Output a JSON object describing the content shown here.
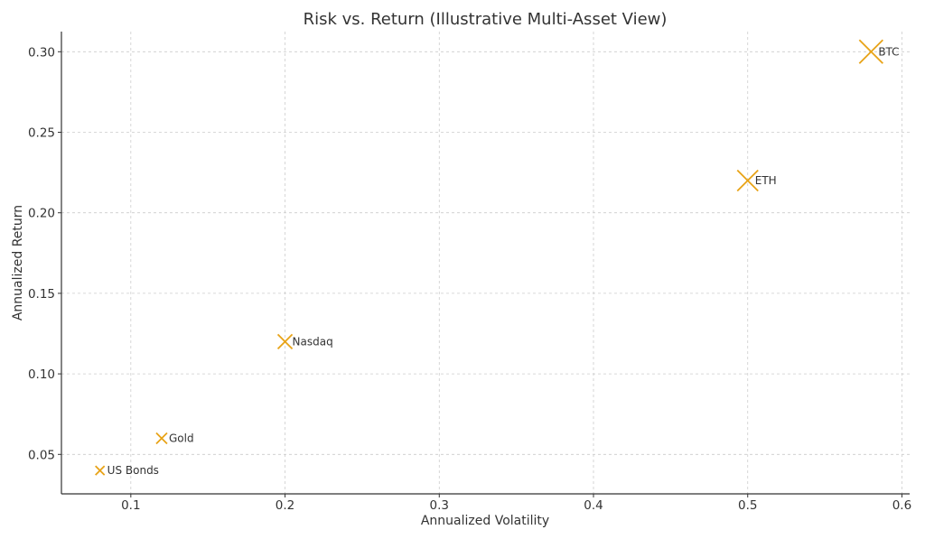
{
  "chart_data": {
    "type": "scatter",
    "title": "Risk vs. Return (Illustrative Multi-Asset View)",
    "xlabel": "Annualized Volatility",
    "ylabel": "Annualized Return",
    "xlim": [
      0.055,
      0.605
    ],
    "ylim": [
      0.0255,
      0.3125
    ],
    "xticks": [
      0.1,
      0.2,
      0.3,
      0.4,
      0.5,
      0.6
    ],
    "xtick_labels": [
      "0.1",
      "0.2",
      "0.3",
      "0.4",
      "0.5",
      "0.6"
    ],
    "yticks": [
      0.05,
      0.1,
      0.15,
      0.2,
      0.25,
      0.3
    ],
    "ytick_labels": [
      "0.05",
      "0.10",
      "0.15",
      "0.20",
      "0.25",
      "0.30"
    ],
    "grid": true,
    "marker": "x",
    "marker_color": "#E8A317",
    "points": [
      {
        "label": "US Bonds",
        "x": 0.08,
        "y": 0.04,
        "size": 1
      },
      {
        "label": "Gold",
        "x": 0.12,
        "y": 0.06,
        "size": 1.2
      },
      {
        "label": "Nasdaq",
        "x": 0.2,
        "y": 0.12,
        "size": 1.6
      },
      {
        "label": "ETH",
        "x": 0.5,
        "y": 0.22,
        "size": 2.3
      },
      {
        "label": "BTC",
        "x": 0.58,
        "y": 0.3,
        "size": 2.6
      }
    ]
  }
}
